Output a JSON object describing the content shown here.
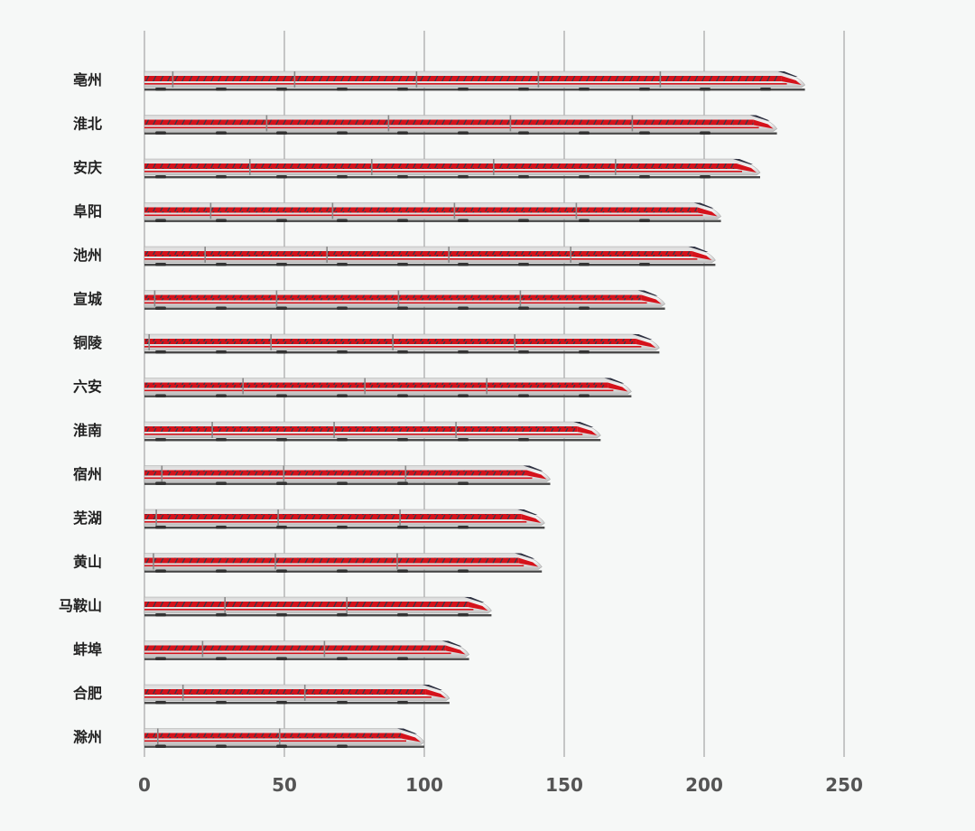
{
  "chart_data": {
    "type": "bar",
    "orientation": "horizontal",
    "categories": [
      "亳州",
      "淮北",
      "安庆",
      "阜阳",
      "池州",
      "宣城",
      "铜陵",
      "六安",
      "淮南",
      "宿州",
      "芜湖",
      "黄山",
      "马鞍山",
      "蚌埠",
      "合肥",
      "滁州"
    ],
    "values": [
      236,
      226,
      220,
      206,
      204,
      186,
      184,
      174,
      163,
      145,
      143,
      142,
      124,
      116,
      109,
      100
    ],
    "xlim": [
      0,
      250
    ],
    "xticks": [
      0,
      50,
      100,
      150,
      200,
      250
    ],
    "grid": true,
    "bar_style": "high-speed-train",
    "colors": {
      "background": "#f6f8f7",
      "grid": "#b9b9b9",
      "train_red": "#d5121b",
      "train_silver": "#c9c9c9",
      "train_window": "#3a3a4a",
      "undercarriage": "#4a4a4a"
    }
  }
}
